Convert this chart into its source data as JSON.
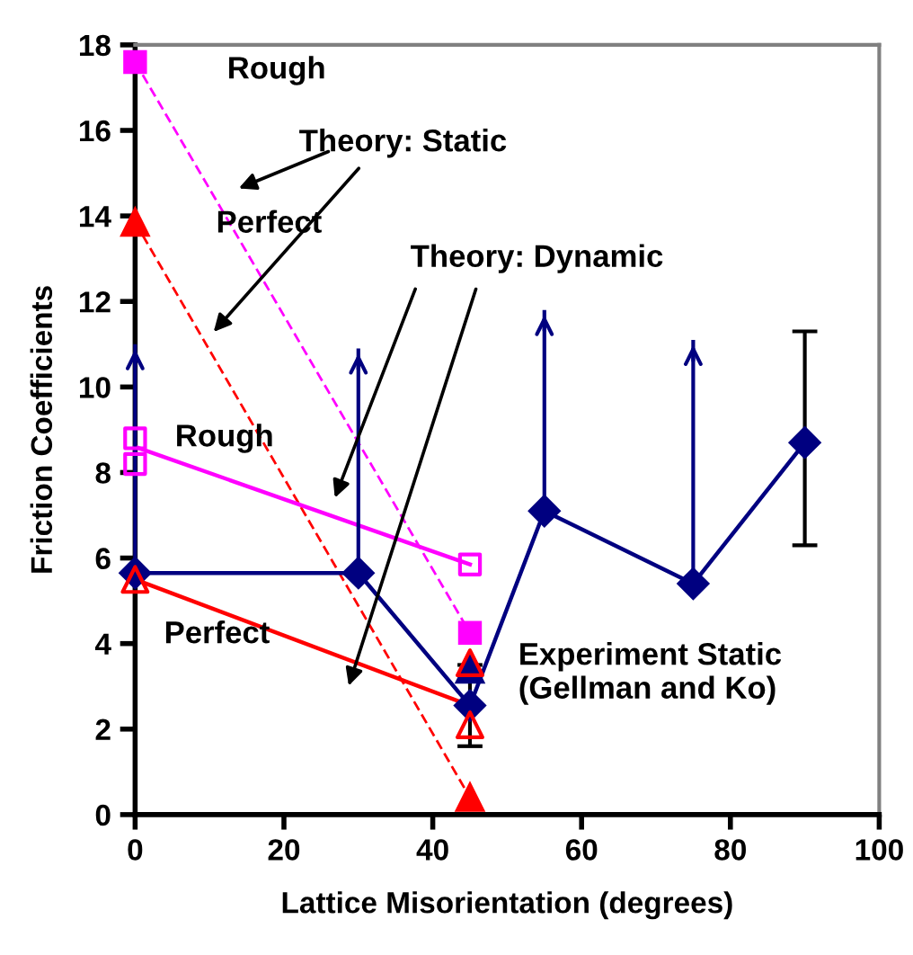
{
  "chart_data": {
    "type": "line",
    "xlabel": "Lattice Misorientation (degrees)",
    "ylabel": "Friction Coefficients",
    "xlim": [
      0,
      100
    ],
    "xticks": [
      0,
      20,
      40,
      60,
      80,
      100
    ],
    "ylim": [
      0,
      18
    ],
    "yticks": [
      0,
      2,
      4,
      6,
      8,
      10,
      12,
      14,
      16,
      18
    ],
    "grid": false,
    "series": [
      {
        "color": "#ff00ff",
        "x": [
          0,
          45
        ],
        "values": [
          17.6,
          4.25
        ],
        "marker": "square",
        "line_style": "dashed"
      },
      {
        "color": "#ff0000",
        "x": [
          0,
          45
        ],
        "values": [
          13.85,
          0.4
        ],
        "marker": "triangle",
        "line_style": "dashed"
      },
      {
        "color": "#ff00ff",
        "x": [
          0,
          45
        ],
        "values": [
          8.6,
          5.85
        ],
        "marker": "none",
        "line_style": "solid"
      },
      {
        "type": "scatter",
        "color": "#ff00ff",
        "x": [
          0,
          0,
          45
        ],
        "values": [
          8.8,
          8.2,
          5.85
        ],
        "marker": "square"
      },
      {
        "color": "#ff0000",
        "x": [
          0,
          45
        ],
        "values": [
          5.5,
          2.55
        ],
        "marker": "none",
        "line_style": "solid"
      },
      {
        "type": "scatter",
        "color": "#ff0000",
        "x": [
          0,
          45,
          45
        ],
        "values": [
          5.5,
          3.55,
          2.1
        ],
        "marker": "triangle"
      },
      {
        "color": "#000080",
        "x": [
          0,
          30,
          45,
          55,
          75,
          90
        ],
        "values": [
          5.65,
          5.65,
          2.55,
          7.1,
          5.4,
          8.7
        ],
        "marker": "diamond",
        "line_style": "solid",
        "errors": [
          [
            5.65,
            11.0
          ],
          [
            5.65,
            10.9
          ],
          [
            1.6,
            3.5
          ],
          [
            7.1,
            11.8
          ],
          [
            5.4,
            11.1
          ],
          [
            6.3,
            11.3
          ]
        ]
      },
      {
        "color": "#000080",
        "x": [
          45
        ],
        "values": [
          3.4
        ],
        "marker": "triangle",
        "line_style": "solid"
      }
    ],
    "annotations": [
      "Rough",
      "Perfect",
      "Theory: Static",
      "Rough",
      "Perfect",
      "Theory: Dynamic",
      "Experiment Static\n(Gellman and Ko)"
    ]
  }
}
